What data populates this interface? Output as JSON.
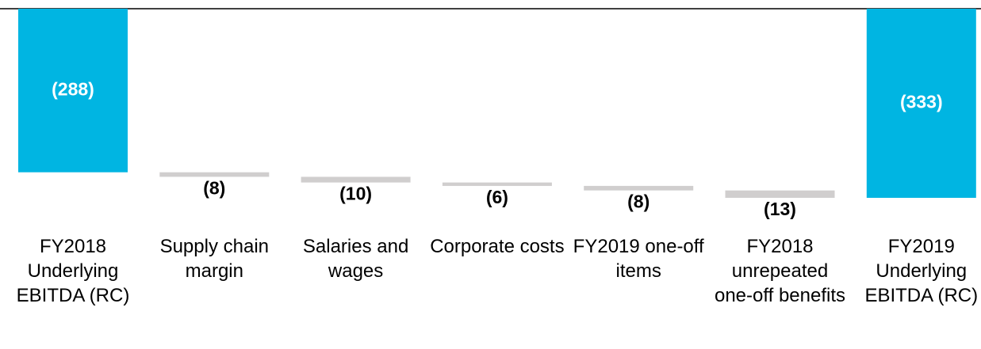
{
  "chart_data": {
    "type": "waterfall",
    "categories": [
      "FY2018 Underlying EBITDA (RC)",
      "Supply chain margin",
      "Salaries and wages",
      "Corporate costs",
      "FY2019 one-off items",
      "FY2018 unrepeated one-off benefits",
      "FY2019 Underlying EBITDA (RC)"
    ],
    "values": [
      -288,
      -8,
      -10,
      -6,
      -8,
      -13,
      -333
    ],
    "value_labels": [
      "(288)",
      "(8)",
      "(10)",
      "(6)",
      "(8)",
      "(13)",
      "(333)"
    ],
    "total_color": "#00b5e2",
    "step_color": "#d0cece",
    "ylim": [
      -340,
      0
    ]
  }
}
